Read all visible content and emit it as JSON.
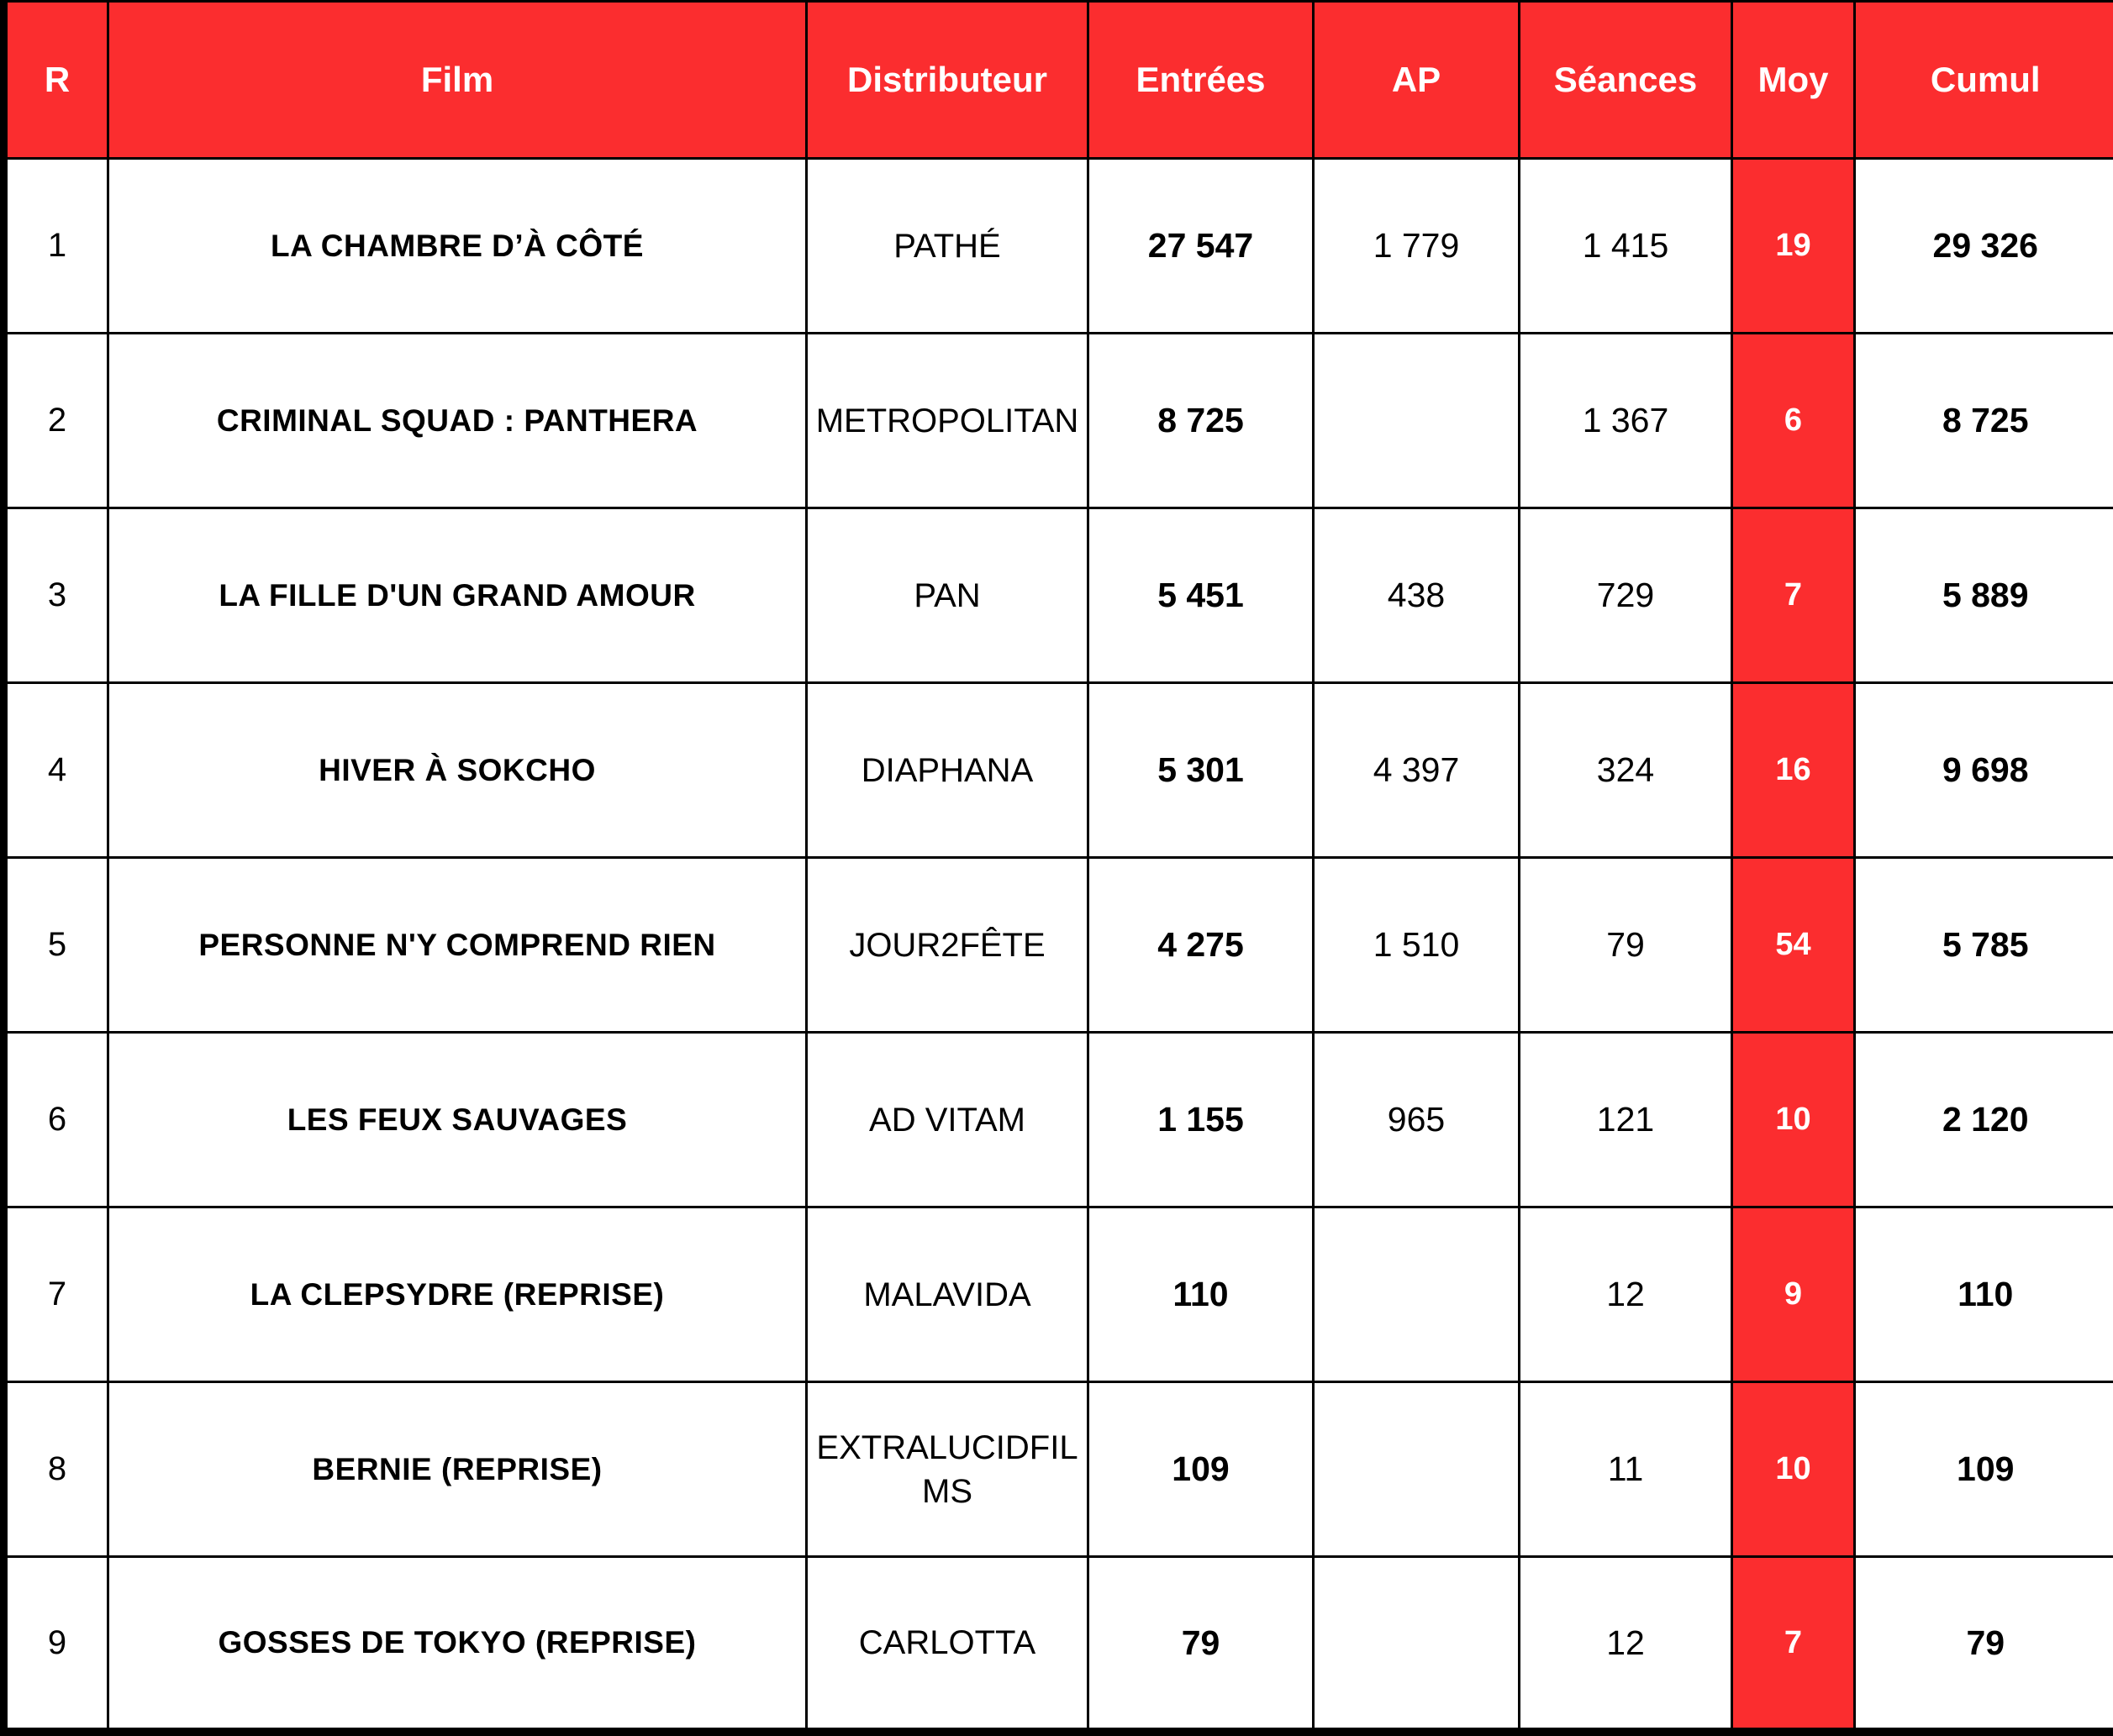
{
  "colors": {
    "header_bg": "#fb2d2f",
    "header_text": "#ffffff",
    "moy_bg": "#fb2d2f",
    "moy_text": "#ffffff",
    "body_text": "#000000",
    "border": "#000000"
  },
  "columns": [
    {
      "key": "r",
      "label": "R"
    },
    {
      "key": "film",
      "label": "Film"
    },
    {
      "key": "distributor",
      "label": "Distributeur"
    },
    {
      "key": "entrees",
      "label": "Entrées"
    },
    {
      "key": "ap",
      "label": "AP"
    },
    {
      "key": "seances",
      "label": "Séances"
    },
    {
      "key": "moy",
      "label": "Moy"
    },
    {
      "key": "cumul",
      "label": "Cumul"
    }
  ],
  "rows": [
    {
      "r": "1",
      "film": "LA CHAMBRE D’À CÔTÉ",
      "distributor": "PATHÉ",
      "entrees": "27 547",
      "ap": "1 779",
      "seances": "1 415",
      "moy": "19",
      "cumul": "29 326"
    },
    {
      "r": "2",
      "film": "CRIMINAL SQUAD : PANTHERA",
      "distributor": "METROPOLITAN",
      "entrees": "8 725",
      "ap": "",
      "seances": "1 367",
      "moy": "6",
      "cumul": "8 725"
    },
    {
      "r": "3",
      "film": "LA FILLE D'UN GRAND AMOUR",
      "distributor": "PAN",
      "entrees": "5 451",
      "ap": "438",
      "seances": "729",
      "moy": "7",
      "cumul": "5 889"
    },
    {
      "r": "4",
      "film": "HIVER À SOKCHO",
      "distributor": "DIAPHANA",
      "entrees": "5 301",
      "ap": "4 397",
      "seances": "324",
      "moy": "16",
      "cumul": "9 698"
    },
    {
      "r": "5",
      "film": "PERSONNE N'Y COMPREND RIEN",
      "distributor": "JOUR2FÊTE",
      "entrees": "4 275",
      "ap": "1 510",
      "seances": "79",
      "moy": "54",
      "cumul": "5 785"
    },
    {
      "r": "6",
      "film": "LES FEUX SAUVAGES",
      "distributor": "AD VITAM",
      "entrees": "1 155",
      "ap": "965",
      "seances": "121",
      "moy": "10",
      "cumul": "2 120"
    },
    {
      "r": "7",
      "film": "LA CLEPSYDRE (REPRISE)",
      "distributor": "MALAVIDA",
      "entrees": "110",
      "ap": "",
      "seances": "12",
      "moy": "9",
      "cumul": "110"
    },
    {
      "r": "8",
      "film": "BERNIE (REPRISE)",
      "distributor": "EXTRALUCIDFILMS",
      "entrees": "109",
      "ap": "",
      "seances": "11",
      "moy": "10",
      "cumul": "109"
    },
    {
      "r": "9",
      "film": "GOSSES DE TOKYO (REPRISE)",
      "distributor": "CARLOTTA",
      "entrees": "79",
      "ap": "",
      "seances": "12",
      "moy": "7",
      "cumul": "79"
    }
  ]
}
